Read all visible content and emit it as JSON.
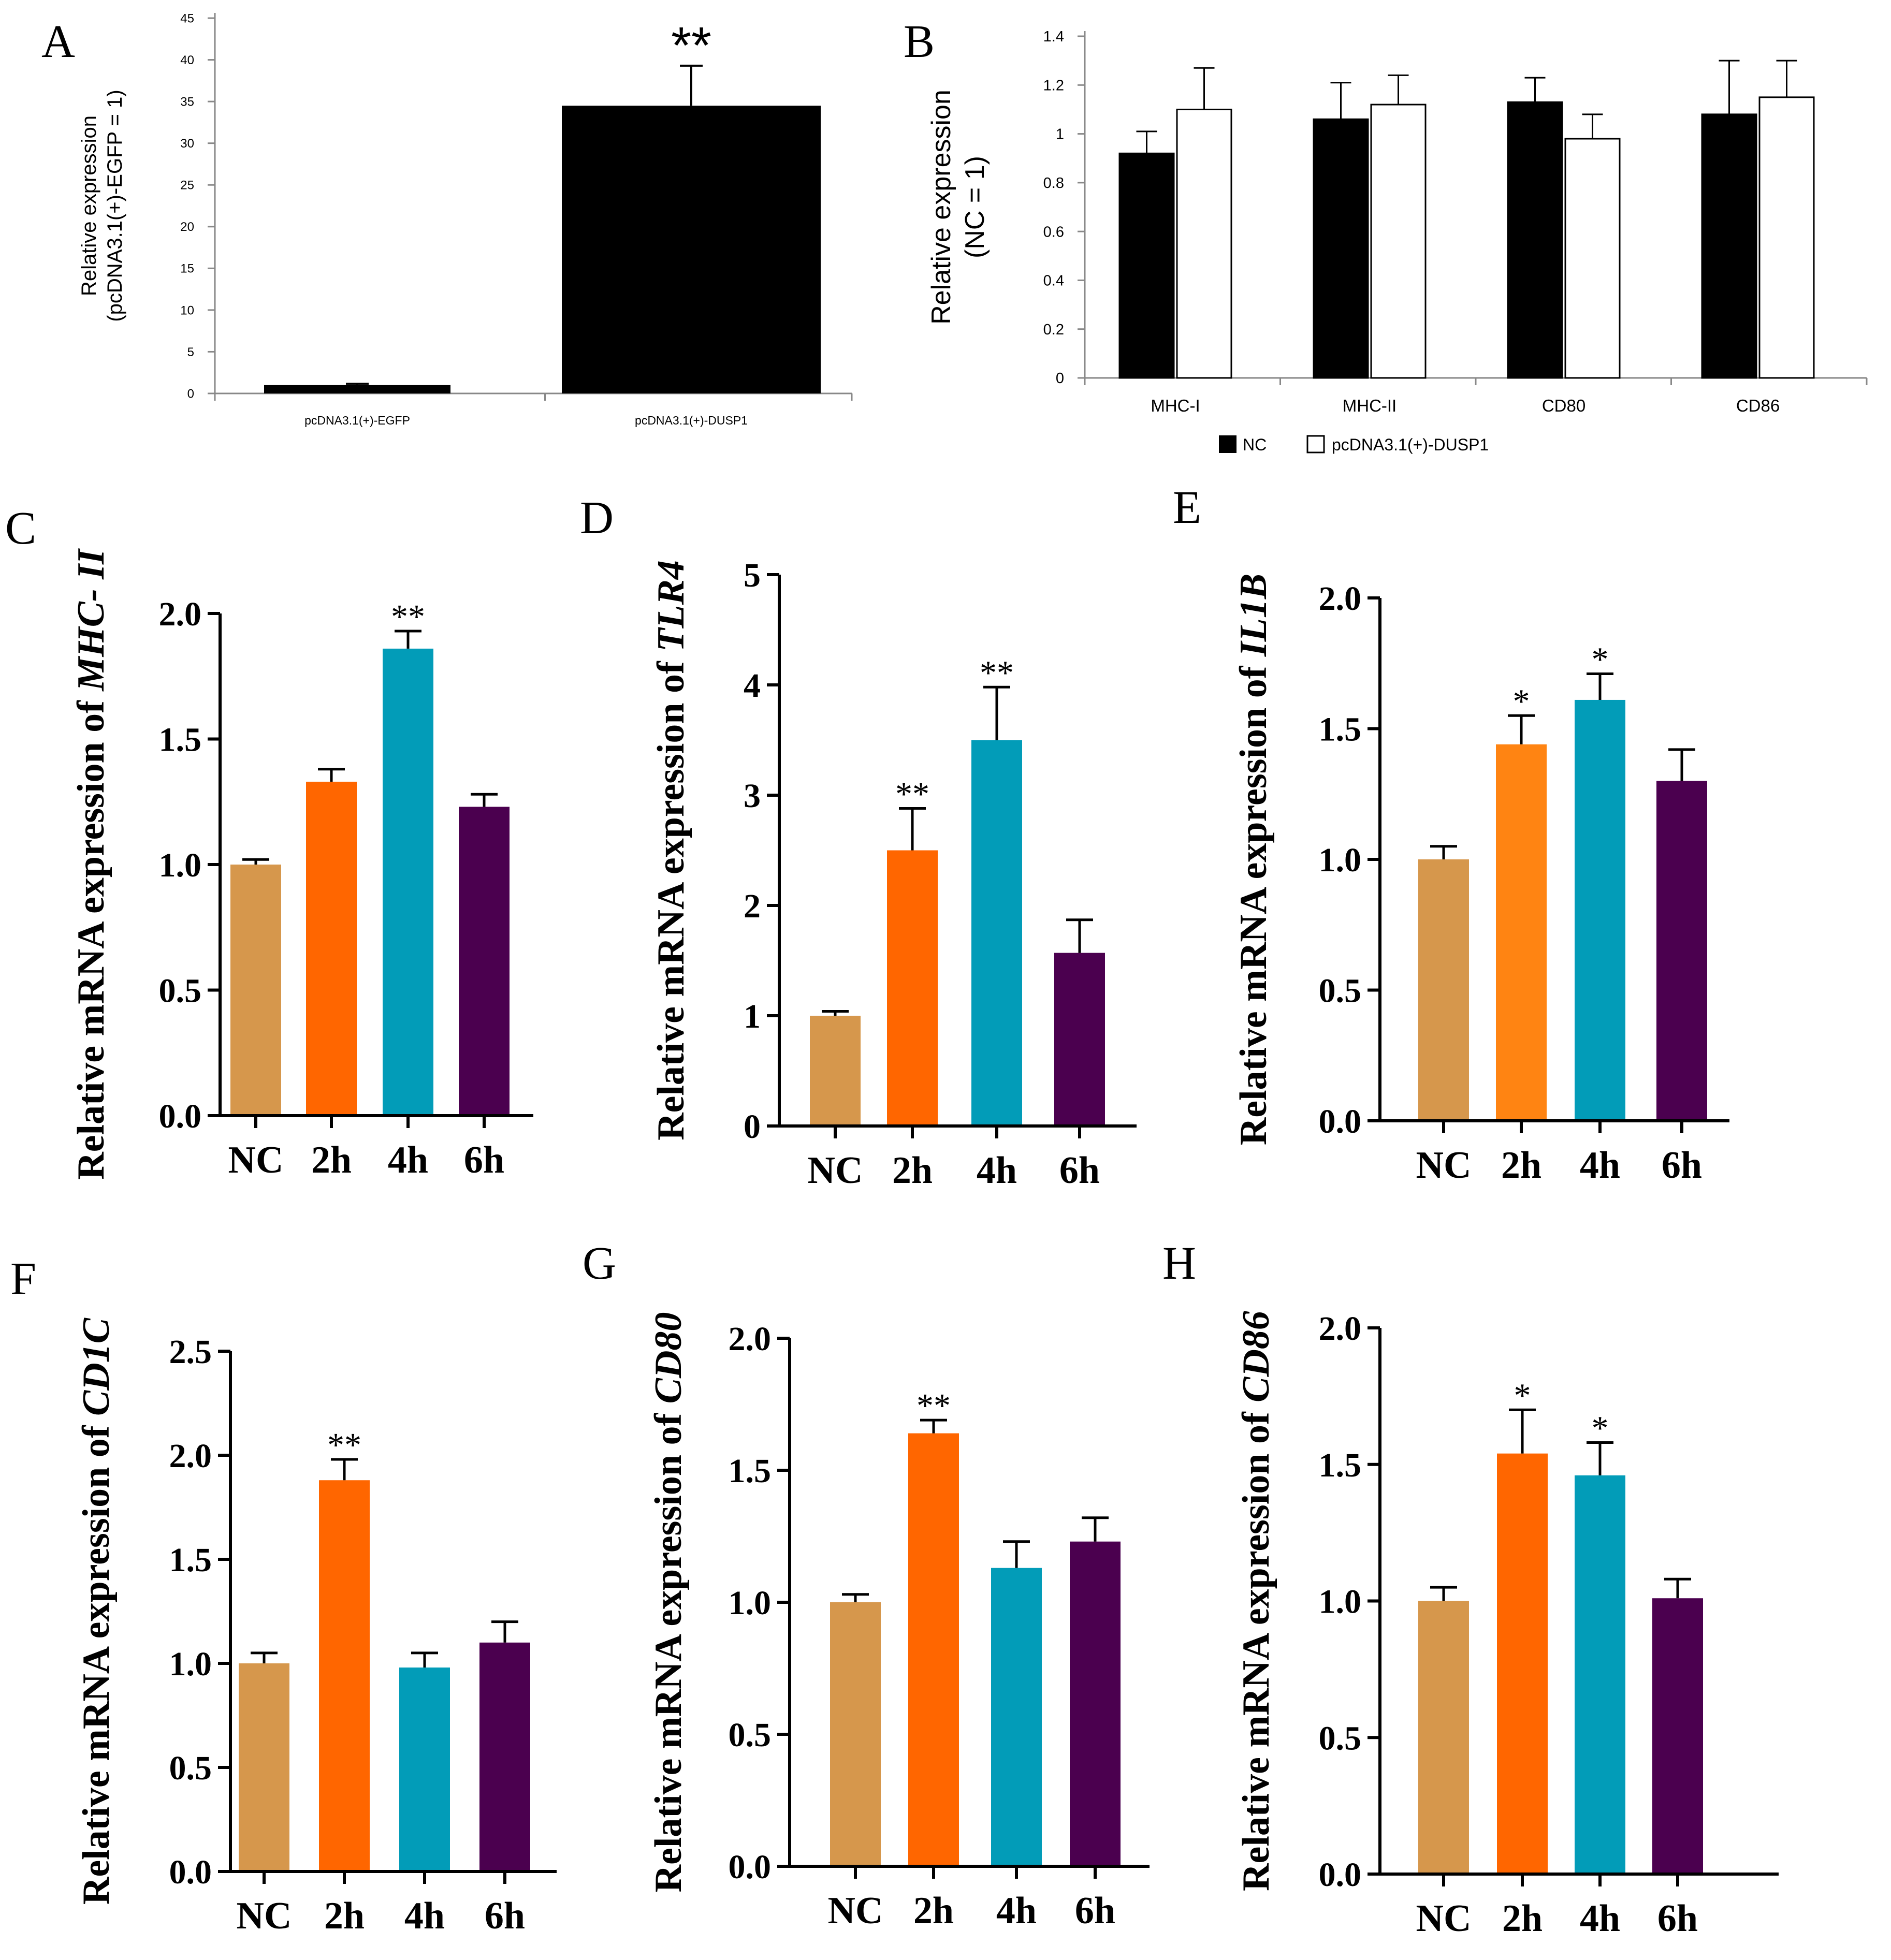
{
  "colors": {
    "nc": "#d6974c",
    "h2": "#ff6600",
    "h2_e": "#ff8412",
    "h4": "#029cb8",
    "h6": "#4b004f",
    "black": "#000000",
    "white": "#ffffff"
  },
  "chart_data": [
    {
      "panel": "A",
      "type": "bar",
      "ylabel_line1": "Relative expression",
      "ylabel_line2": "(pcDNA3.1(+)-EGFP = 1)",
      "categories": [
        "pcDNA3.1(+)-EGFP",
        "pcDNA3.1(+)-DUSP1"
      ],
      "values": [
        1.0,
        34.5
      ],
      "errors": [
        0.15,
        4.8
      ],
      "annotations": [
        "",
        "**"
      ],
      "bar_colors": [
        "#000000",
        "#000000"
      ],
      "ylim": [
        0,
        45
      ],
      "ticks": [
        "0",
        "5",
        "10",
        "15",
        "20",
        "25",
        "30",
        "35",
        "40",
        "45"
      ]
    },
    {
      "panel": "B",
      "type": "bar",
      "ylabel_line1": "Relative expression",
      "ylabel_line2": "(NC = 1)",
      "categories": [
        "MHC-I",
        "MHC-II",
        "CD80",
        "CD86"
      ],
      "series": [
        {
          "name": "NC",
          "values": [
            0.92,
            1.06,
            1.13,
            1.08
          ],
          "errors": [
            0.09,
            0.15,
            0.1,
            0.22
          ],
          "color": "#000000"
        },
        {
          "name": "pcDNA3.1(+)-DUSP1",
          "values": [
            1.1,
            1.12,
            0.98,
            1.15
          ],
          "errors": [
            0.17,
            0.12,
            0.1,
            0.15
          ],
          "color": "#ffffff"
        }
      ],
      "ylim": [
        0,
        1.4
      ],
      "ticks": [
        "0",
        "0.2",
        "0.4",
        "0.6",
        "0.8",
        "1",
        "1.2",
        "1.4"
      ]
    },
    {
      "panel": "C",
      "type": "bar",
      "ylabel_prefix": "Relative mRNA expression of ",
      "gene": "MHC- II",
      "categories": [
        "NC",
        "2h",
        "4h",
        "6h"
      ],
      "values": [
        1.0,
        1.33,
        1.86,
        1.23
      ],
      "errors": [
        0.02,
        0.05,
        0.07,
        0.05
      ],
      "annotations": [
        "",
        "",
        "**",
        ""
      ],
      "bar_colors": [
        "#d6974c",
        "#ff6600",
        "#029cb8",
        "#4b004f"
      ],
      "ylim": [
        0,
        2.0
      ],
      "ticks": [
        "0.0",
        "0.5",
        "1.0",
        "1.5",
        "2.0"
      ]
    },
    {
      "panel": "D",
      "type": "bar",
      "ylabel_prefix": "Relative mRNA expression of ",
      "gene": "TLR4",
      "categories": [
        "NC",
        "2h",
        "4h",
        "6h"
      ],
      "values": [
        1.0,
        2.5,
        3.5,
        1.57
      ],
      "errors": [
        0.04,
        0.38,
        0.48,
        0.3
      ],
      "annotations": [
        "",
        "**",
        "**",
        ""
      ],
      "bar_colors": [
        "#d6974c",
        "#ff6600",
        "#029cb8",
        "#4b004f"
      ],
      "ylim": [
        0,
        5
      ],
      "ticks": [
        "0",
        "1",
        "2",
        "3",
        "4",
        "5"
      ]
    },
    {
      "panel": "E",
      "type": "bar",
      "ylabel_prefix": "Relative mRNA expression of ",
      "gene": "IL1B",
      "categories": [
        "NC",
        "2h",
        "4h",
        "6h"
      ],
      "values": [
        1.0,
        1.44,
        1.61,
        1.3
      ],
      "errors": [
        0.05,
        0.11,
        0.1,
        0.12
      ],
      "annotations": [
        "",
        "*",
        "*",
        ""
      ],
      "bar_colors": [
        "#d6974c",
        "#ff8412",
        "#029cb8",
        "#4b004f"
      ],
      "ylim": [
        0,
        2.0
      ],
      "ticks": [
        "0.0",
        "0.5",
        "1.0",
        "1.5",
        "2.0"
      ]
    },
    {
      "panel": "F",
      "type": "bar",
      "ylabel_prefix": "Relative mRNA expression of ",
      "gene": "CD1C",
      "categories": [
        "NC",
        "2h",
        "4h",
        "6h"
      ],
      "values": [
        1.0,
        1.88,
        0.98,
        1.1
      ],
      "errors": [
        0.05,
        0.1,
        0.07,
        0.1
      ],
      "annotations": [
        "",
        "**",
        "",
        ""
      ],
      "bar_colors": [
        "#d6974c",
        "#ff6600",
        "#029cb8",
        "#4b004f"
      ],
      "ylim": [
        0,
        2.5
      ],
      "ticks": [
        "0.0",
        "0.5",
        "1.0",
        "1.5",
        "2.0",
        "2.5"
      ]
    },
    {
      "panel": "G",
      "type": "bar",
      "ylabel_prefix": "Relative mRNA expression of ",
      "gene": "CD80",
      "categories": [
        "NC",
        "2h",
        "4h",
        "6h"
      ],
      "values": [
        1.0,
        1.64,
        1.13,
        1.23
      ],
      "errors": [
        0.03,
        0.05,
        0.1,
        0.09
      ],
      "annotations": [
        "",
        "**",
        "",
        ""
      ],
      "bar_colors": [
        "#d6974c",
        "#ff6600",
        "#029cb8",
        "#4b004f"
      ],
      "ylim": [
        0,
        2.0
      ],
      "ticks": [
        "0.0",
        "0.5",
        "1.0",
        "1.5",
        "2.0"
      ]
    },
    {
      "panel": "H",
      "type": "bar",
      "ylabel_prefix": "Relative mRNA expression of ",
      "gene": "CD86",
      "categories": [
        "NC",
        "2h",
        "4h",
        "6h"
      ],
      "values": [
        1.0,
        1.54,
        1.46,
        1.01
      ],
      "errors": [
        0.05,
        0.16,
        0.12,
        0.07
      ],
      "annotations": [
        "",
        "*",
        "*",
        ""
      ],
      "bar_colors": [
        "#d6974c",
        "#ff6600",
        "#029cb8",
        "#4b004f"
      ],
      "ylim": [
        0,
        2.0
      ],
      "ticks": [
        "0.0",
        "0.5",
        "1.0",
        "1.5",
        "2.0"
      ]
    }
  ]
}
